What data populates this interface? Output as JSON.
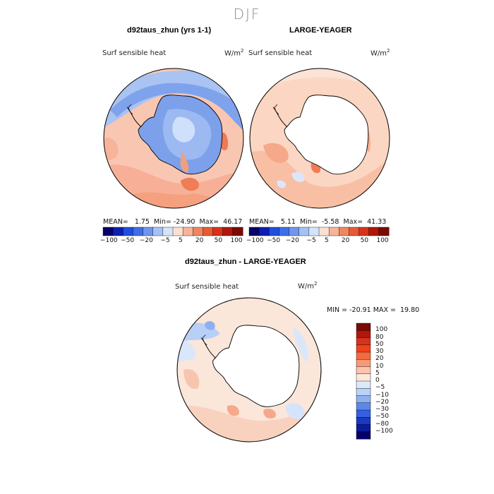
{
  "season": "DJF",
  "panels": {
    "model": {
      "title": "d92taus_zhun (yrs 1-1)",
      "variable": "Surf sensible heat",
      "units_base": "W/m",
      "units_exp": "2",
      "mean_text": "MEAN=   1.75  Min= -24.90  Max=  46.17"
    },
    "obs": {
      "title": "LARGE-YEAGER",
      "variable": "Surf sensible heat",
      "units_base": "W/m",
      "units_exp": "2",
      "mean_text": "MEAN=   5.11  Min=  -5.58  Max=  41.33"
    },
    "diff": {
      "title": "d92taus_zhun - LARGE-YEAGER",
      "variable": "Surf sensible heat",
      "units_base": "W/m",
      "units_exp": "2",
      "minmax_text": "MIN = -20.91 MAX =  19.80"
    }
  },
  "horizontal_colorbar": {
    "labels": [
      "−100",
      "−50",
      "−20",
      "−5",
      "5",
      "20",
      "50",
      "100"
    ],
    "colors": [
      "#08006b",
      "#0d1fb0",
      "#1f4fdc",
      "#3f6fe8",
      "#6f95ee",
      "#a6c2f5",
      "#d6e4fb",
      "#fbe0d0",
      "#f7b49a",
      "#f08660",
      "#e85a36",
      "#d8321c",
      "#b0160c",
      "#7a0a04"
    ]
  },
  "vertical_colorbar": {
    "labels": [
      "100",
      "80",
      "50",
      "30",
      "20",
      "10",
      "5",
      "0",
      "−5",
      "−10",
      "−20",
      "−30",
      "−50",
      "−80",
      "−100"
    ],
    "colors": [
      "#7a0a04",
      "#b0160c",
      "#d8321c",
      "#f0421c",
      "#f56a3c",
      "#f79a78",
      "#fbc4ad",
      "#fde6da",
      "#dce9fb",
      "#bcd3f7",
      "#8fb1f1",
      "#5e87ea",
      "#3560e0",
      "#1a38c4",
      "#0b1b9a",
      "#06006a"
    ]
  },
  "colors": {
    "land": "#ffffff",
    "coast": "#000000",
    "warm_light": "#fad9c6",
    "warm_mid": "#f3a686",
    "cool_light": "#d4e3fb",
    "cool_mid": "#8fb0f0"
  }
}
